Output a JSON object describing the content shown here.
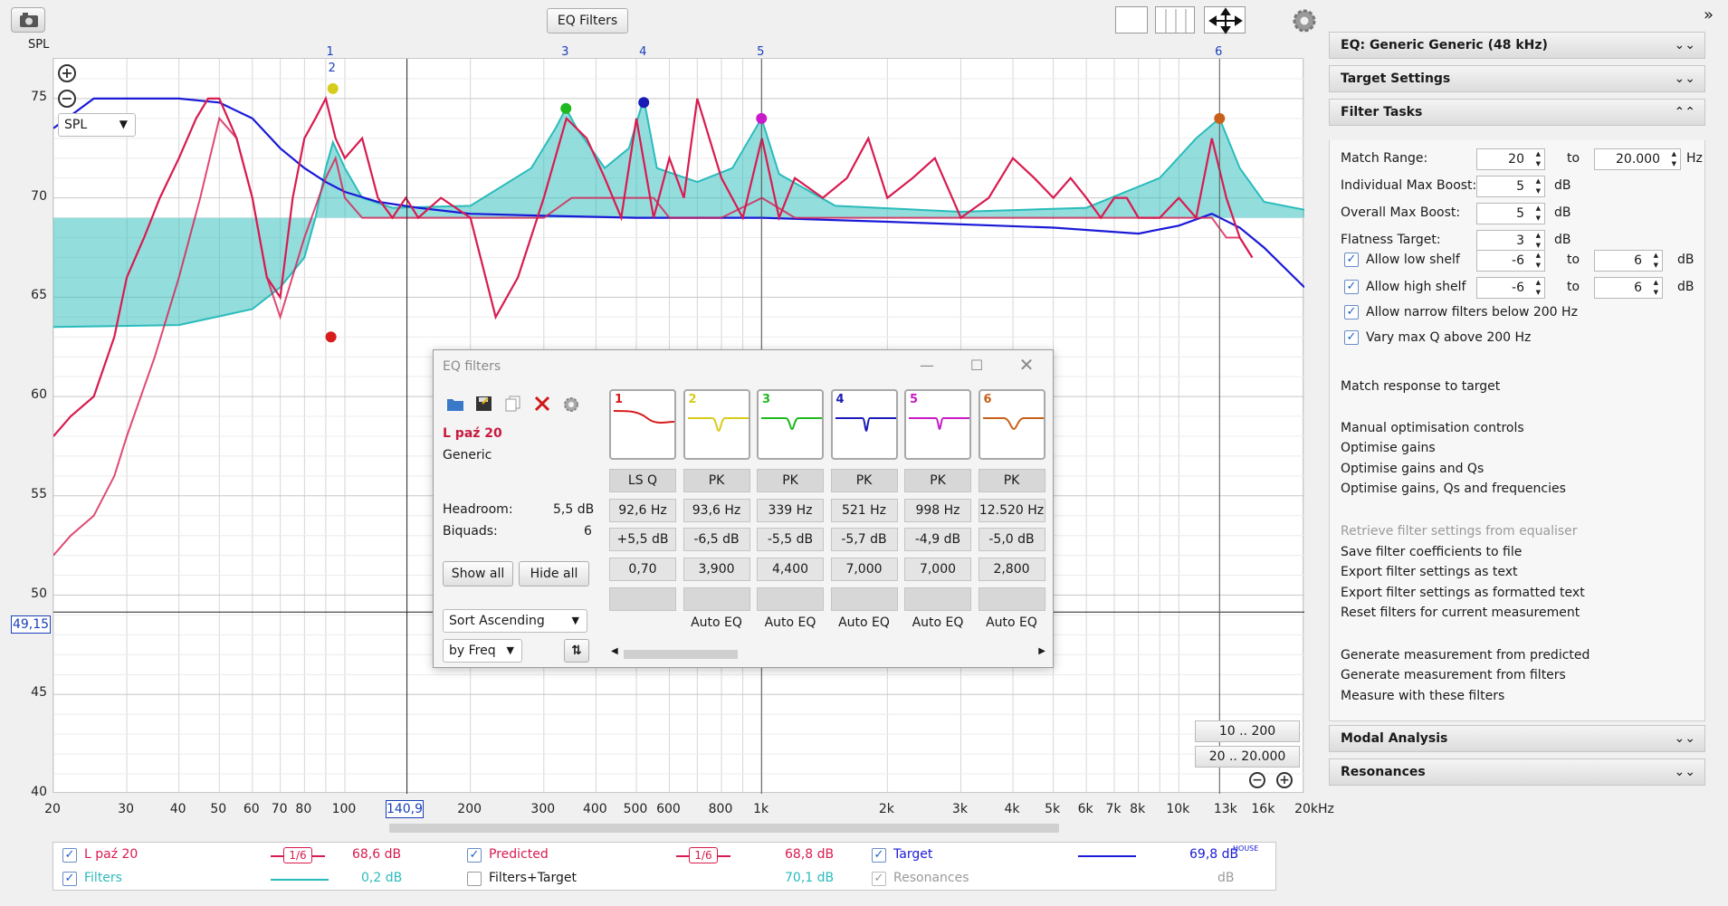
{
  "toolbar": {
    "camera_icon": "camera-icon",
    "spl_label": "SPL",
    "eq_filters_button": "EQ Filters"
  },
  "graph": {
    "y_ticks": [
      "75",
      "70",
      "65",
      "60",
      "55",
      "50",
      "45",
      "40"
    ],
    "x_ticks": [
      "20",
      "30",
      "40",
      "50",
      "60",
      "70",
      "80",
      "100",
      "200",
      "300",
      "400",
      "500",
      "600",
      "800",
      "1k",
      "2k",
      "3k",
      "4k",
      "5k",
      "6k",
      "7k",
      "8k",
      "10k",
      "13k",
      "16k",
      "20kHz"
    ],
    "filter_markers": [
      "1",
      "2",
      "3",
      "4",
      "5",
      "6"
    ],
    "cursor_y": "49,15",
    "cursor_x": "140,9",
    "spl_select": "SPL",
    "range_buttons": [
      "10 .. 200",
      "20 .. 20.000"
    ]
  },
  "chart_data": {
    "type": "line",
    "x_scale": "log",
    "xlim": [
      20,
      20000
    ],
    "ylim": [
      40,
      77
    ],
    "grid": true,
    "series": [
      {
        "name": "L paź 20",
        "color": "#d81b50",
        "x": [
          20,
          22,
          25,
          28,
          30,
          33,
          36,
          40,
          44,
          47,
          50,
          55,
          60,
          65,
          70,
          75,
          80,
          85,
          90,
          95,
          100,
          110,
          120,
          130,
          140,
          150,
          170,
          200,
          230,
          260,
          300,
          340,
          380,
          420,
          460,
          500,
          550,
          600,
          650,
          700,
          800,
          900,
          1000,
          1100,
          1200,
          1400,
          1600,
          1800,
          2000,
          2300,
          2600,
          3000,
          3500,
          4000,
          4500,
          5000,
          5500,
          6000,
          6500,
          7000,
          7500,
          8000,
          9000,
          10000,
          11000,
          12000,
          13000,
          14000,
          15000
        ],
        "y": [
          58,
          59,
          60,
          63,
          66,
          68,
          70,
          72,
          74,
          75,
          75,
          73,
          70,
          66,
          65,
          70,
          73,
          74,
          75,
          73,
          72,
          73,
          70,
          69,
          70,
          69,
          70,
          69,
          64,
          66,
          70,
          74,
          73,
          71,
          69,
          74,
          69,
          72,
          70,
          75,
          71,
          69,
          73,
          69,
          71,
          70,
          71,
          73,
          70,
          71,
          72,
          69,
          70,
          72,
          71,
          70,
          71,
          70,
          69,
          70,
          70,
          69,
          69,
          70,
          69,
          73,
          70,
          68,
          67
        ]
      },
      {
        "name": "Predicted",
        "color": "#d81b50",
        "x": [
          20,
          22,
          25,
          28,
          30,
          35,
          40,
          45,
          50,
          55,
          60,
          65,
          70,
          80,
          90,
          95,
          100,
          110,
          130,
          150,
          200,
          250,
          300,
          350,
          400,
          450,
          500,
          550,
          600,
          700,
          800,
          1000,
          1200,
          1500,
          2000,
          3000,
          4000,
          5000,
          6000,
          7000,
          8000,
          9000,
          10000,
          12000,
          13000,
          14000,
          15000
        ],
        "y": [
          52,
          53,
          54,
          56,
          58,
          62,
          66,
          70,
          74,
          73,
          70,
          66,
          64,
          68,
          71,
          72,
          70,
          69,
          69,
          69,
          69,
          69,
          69,
          70,
          70,
          70,
          70,
          70,
          69,
          69,
          69,
          70,
          69,
          69,
          69,
          69,
          69,
          69,
          69,
          69,
          69,
          69,
          69,
          69,
          68,
          68,
          67
        ]
      },
      {
        "name": "Target",
        "color": "#1a1ad8",
        "x": [
          20,
          25,
          30,
          40,
          50,
          60,
          70,
          80,
          90,
          100,
          120,
          150,
          200,
          300,
          500,
          1000,
          2000,
          5000,
          8000,
          10000,
          12000,
          14000,
          16000,
          20000
        ],
        "y": [
          73.5,
          75,
          75,
          75,
          74.8,
          74,
          72.5,
          71.5,
          70.8,
          70.3,
          69.8,
          69.5,
          69.2,
          69.1,
          69.0,
          69.0,
          68.8,
          68.5,
          68.2,
          68.6,
          69.2,
          68.5,
          67.5,
          65.5
        ]
      },
      {
        "name": "Filters",
        "color": "#2abbbb",
        "x": [
          20,
          40,
          60,
          70,
          80,
          85,
          90,
          93.6,
          100,
          110,
          130,
          200,
          280,
          320,
          339,
          360,
          420,
          480,
          521,
          560,
          700,
          850,
          998,
          1100,
          1500,
          3000,
          6000,
          9000,
          11000,
          12520,
          14000,
          16000,
          20000
        ],
        "y": [
          63.5,
          63.6,
          64.4,
          65.5,
          67,
          69,
          71.5,
          72.8,
          71.5,
          70.0,
          69.5,
          69.6,
          71.5,
          73.5,
          74.5,
          73.5,
          71.5,
          72.5,
          75.0,
          71.5,
          70.8,
          71.5,
          74.0,
          71.2,
          69.6,
          69.3,
          69.5,
          71.0,
          73.0,
          74.0,
          71.5,
          69.8,
          69.4
        ]
      }
    ],
    "filter_markers": [
      {
        "id": "1",
        "x": 92.6,
        "y": 63.0,
        "color": "#d81b1b"
      },
      {
        "id": "2",
        "x": 93.6,
        "y": 75.5,
        "color": "#d8cc1a"
      },
      {
        "id": "3",
        "x": 339,
        "y": 74.5,
        "color": "#1fb81f"
      },
      {
        "id": "4",
        "x": 521,
        "y": 74.8,
        "color": "#1a1ab8"
      },
      {
        "id": "5",
        "x": 998,
        "y": 74.0,
        "color": "#c81ac8"
      },
      {
        "id": "6",
        "x": 12520,
        "y": 74.0,
        "color": "#c8601a"
      }
    ]
  },
  "legend": {
    "l_paz": {
      "label": "L paź 20",
      "smooth": "1/6",
      "value": "68,6 dB",
      "color": "#d81b50"
    },
    "predicted": {
      "label": "Predicted",
      "smooth": "1/6",
      "value": "68,8 dB",
      "color": "#d81b50"
    },
    "target": {
      "label": "Target",
      "value": "69,8 dB",
      "suffix": "HOUSE",
      "color": "#1a1ad8"
    },
    "filters": {
      "label": "Filters",
      "value": "0,2 dB",
      "color": "#2abbbb"
    },
    "filters_target": {
      "label": "Filters+Target",
      "value": "70,1 dB"
    },
    "resonances": {
      "label": "Resonances",
      "value": "dB"
    }
  },
  "right_panel": {
    "eq_header": "EQ: Generic Generic (48 kHz)",
    "target_header": "Target Settings",
    "filter_tasks_header": "Filter Tasks",
    "match_range_label": "Match Range:",
    "match_range_from": "20",
    "to": "to",
    "match_range_to": "20.000",
    "hz": "Hz",
    "indiv_label": "Individual Max Boost:",
    "indiv_value": "5",
    "overall_label": "Overall Max Boost:",
    "overall_value": "5",
    "flatness_label": "Flatness Target:",
    "flatness_value": "3",
    "db": "dB",
    "low_shelf_label": "Allow low shelf",
    "low_shelf_from": "-6",
    "low_shelf_to": "6",
    "high_shelf_label": "Allow high shelf",
    "high_shelf_from": "-6",
    "high_shelf_to": "6",
    "narrow_label": "Allow narrow filters below 200 Hz",
    "vary_q_label": "Vary max Q above 200 Hz",
    "match_response": "Match response to target",
    "manual_controls": "Manual optimisation controls",
    "opt_gains": "Optimise gains",
    "opt_gains_q": "Optimise gains and Qs",
    "opt_gains_q_f": "Optimise gains, Qs and frequencies",
    "retrieve": "Retrieve filter settings from equaliser",
    "save_coeff": "Save filter coefficients to file",
    "export_text": "Export filter settings as text",
    "export_formatted": "Export filter settings as formatted text",
    "reset_filters": "Reset filters for current measurement",
    "gen_predicted": "Generate measurement from predicted",
    "gen_filters": "Generate measurement from filters",
    "measure_filters": "Measure with these filters",
    "modal_header": "Modal Analysis",
    "resonances_header": "Resonances"
  },
  "eq_window": {
    "title": "EQ filters",
    "measurement": "L paź 20",
    "equaliser": "Generic",
    "headroom_label": "Headroom:",
    "headroom_value": "5,5 dB",
    "biquads_label": "Biquads:",
    "biquads_value": "6",
    "show_all": "Show all",
    "hide_all": "Hide all",
    "sort": "Sort Ascending",
    "by": "by Freq",
    "filters": [
      {
        "num": "1",
        "color": "#d81b1b",
        "type": "LS Q",
        "freq": "92,6 Hz",
        "gain": "+5,5 dB",
        "q": "0,70",
        "auto": ""
      },
      {
        "num": "2",
        "color": "#d8cc1a",
        "type": "PK",
        "freq": "93,6 Hz",
        "gain": "-6,5 dB",
        "q": "3,900",
        "auto": "Auto EQ"
      },
      {
        "num": "3",
        "color": "#1fb81f",
        "type": "PK",
        "freq": "339 Hz",
        "gain": "-5,5 dB",
        "q": "4,400",
        "auto": "Auto EQ"
      },
      {
        "num": "4",
        "color": "#1a1ab8",
        "type": "PK",
        "freq": "521 Hz",
        "gain": "-5,7 dB",
        "q": "7,000",
        "auto": "Auto EQ"
      },
      {
        "num": "5",
        "color": "#c81ac8",
        "type": "PK",
        "freq": "998 Hz",
        "gain": "-4,9 dB",
        "q": "7,000",
        "auto": "Auto EQ"
      },
      {
        "num": "6",
        "color": "#c8601a",
        "type": "PK",
        "freq": "12.520 Hz",
        "gain": "-5,0 dB",
        "q": "2,800",
        "auto": "Auto EQ"
      }
    ]
  }
}
